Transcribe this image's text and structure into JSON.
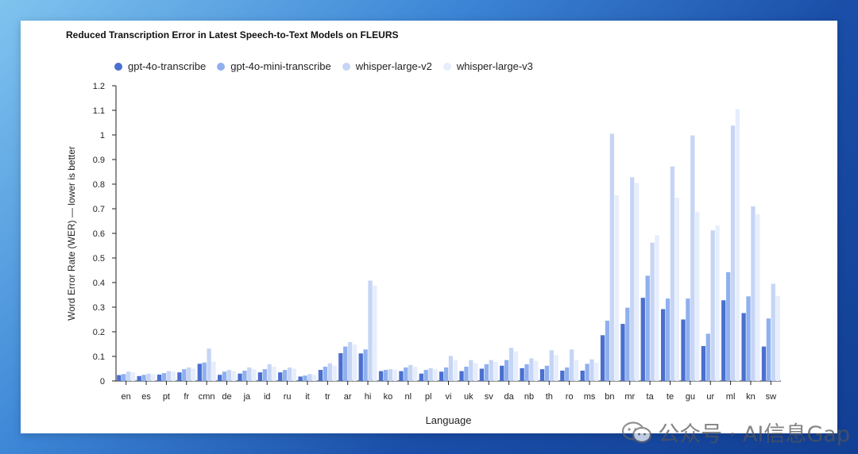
{
  "chart_data": {
    "type": "bar",
    "title": "Reduced Transcription Error in Latest Speech-to-Text Models on FLEURS",
    "xlabel": "Language",
    "ylabel": "Word Error Rate (WER) — lower is better",
    "ylim": [
      0,
      1.2
    ],
    "yticks": [
      "0",
      "0.1",
      "0.2",
      "0.3",
      "0.4",
      "0.5",
      "0.6",
      "0.7",
      "0.8",
      "0.9",
      "1",
      "1.1",
      "1.2"
    ],
    "grid": false,
    "legend_position": "top-left",
    "categories": [
      "en",
      "es",
      "pt",
      "fr",
      "cmn",
      "de",
      "ja",
      "id",
      "ru",
      "it",
      "tr",
      "ar",
      "hi",
      "ko",
      "nl",
      "pl",
      "vi",
      "uk",
      "sv",
      "da",
      "nb",
      "th",
      "ro",
      "ms",
      "bn",
      "mr",
      "ta",
      "te",
      "gu",
      "ur",
      "ml",
      "kn",
      "sw"
    ],
    "series": [
      {
        "name": "gpt-4o-transcribe",
        "color": "#4a6fcf",
        "values": [
          0.024,
          0.02,
          0.026,
          0.035,
          0.07,
          0.025,
          0.03,
          0.035,
          0.035,
          0.018,
          0.045,
          0.113,
          0.112,
          0.04,
          0.04,
          0.03,
          0.038,
          0.04,
          0.05,
          0.062,
          0.052,
          0.048,
          0.042,
          0.042,
          0.186,
          0.232,
          0.338,
          0.292,
          0.25,
          0.142,
          0.328,
          0.276,
          0.14
        ]
      },
      {
        "name": "gpt-4o-mini-transcribe",
        "color": "#8fb0ef",
        "values": [
          0.028,
          0.025,
          0.032,
          0.048,
          0.075,
          0.038,
          0.042,
          0.048,
          0.045,
          0.022,
          0.058,
          0.14,
          0.128,
          0.045,
          0.055,
          0.045,
          0.055,
          0.058,
          0.068,
          0.085,
          0.068,
          0.062,
          0.055,
          0.07,
          0.245,
          0.298,
          0.428,
          0.335,
          0.335,
          0.192,
          0.442,
          0.344,
          0.254
        ]
      },
      {
        "name": "whisper-large-v2",
        "color": "#c6d5f5",
        "values": [
          0.038,
          0.03,
          0.04,
          0.055,
          0.132,
          0.045,
          0.055,
          0.068,
          0.055,
          0.028,
          0.072,
          0.158,
          0.408,
          0.048,
          0.065,
          0.052,
          0.102,
          0.085,
          0.085,
          0.135,
          0.092,
          0.125,
          0.128,
          0.088,
          1.005,
          0.828,
          0.562,
          0.872,
          0.998,
          0.612,
          1.038,
          0.71,
          0.395
        ]
      },
      {
        "name": "whisper-large-v3",
        "color": "#e6edfc",
        "values": [
          0.035,
          0.028,
          0.038,
          0.05,
          0.078,
          0.04,
          0.048,
          0.058,
          0.05,
          0.025,
          0.062,
          0.148,
          0.388,
          0.046,
          0.058,
          0.048,
          0.085,
          0.072,
          0.078,
          0.12,
          0.082,
          0.105,
          0.085,
          0.075,
          0.755,
          0.805,
          0.592,
          0.745,
          0.688,
          0.632,
          1.105,
          0.678,
          0.345
        ]
      }
    ]
  },
  "watermark": {
    "text": "公众号 · AI信息Gap",
    "icon": "wechat-icon"
  }
}
